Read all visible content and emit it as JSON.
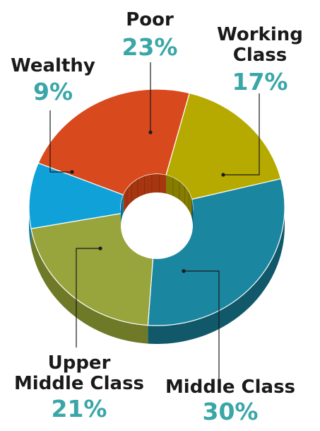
{
  "chart_data": {
    "type": "pie",
    "style": "3d-donut",
    "title": "",
    "categories": [
      "Poor",
      "Working Class",
      "Middle Class",
      "Upper Middle Class",
      "Wealthy"
    ],
    "values": [
      23,
      17,
      30,
      21,
      9
    ],
    "unit": "%",
    "labels": [
      {
        "lines": [
          "Poor"
        ],
        "value": "23%"
      },
      {
        "lines": [
          "Working",
          "Class"
        ],
        "value": "17%"
      },
      {
        "lines": [
          "Middle Class"
        ],
        "value": "30%"
      },
      {
        "lines": [
          "Upper",
          "Middle Class"
        ],
        "value": "21%"
      },
      {
        "lines": [
          "Wealthy"
        ],
        "value": "9%"
      }
    ],
    "colors": [
      "#d9491e",
      "#b6aa00",
      "#1b86a0",
      "#98a43c",
      "#11a1d9"
    ],
    "side_colors": [
      "#a73610",
      "#867c00",
      "#10586a",
      "#6e7a28",
      "#0a78a5"
    ],
    "label_colors": {
      "name": "#1a1a1a",
      "value": "#3aa6a8"
    },
    "legend": "none"
  }
}
